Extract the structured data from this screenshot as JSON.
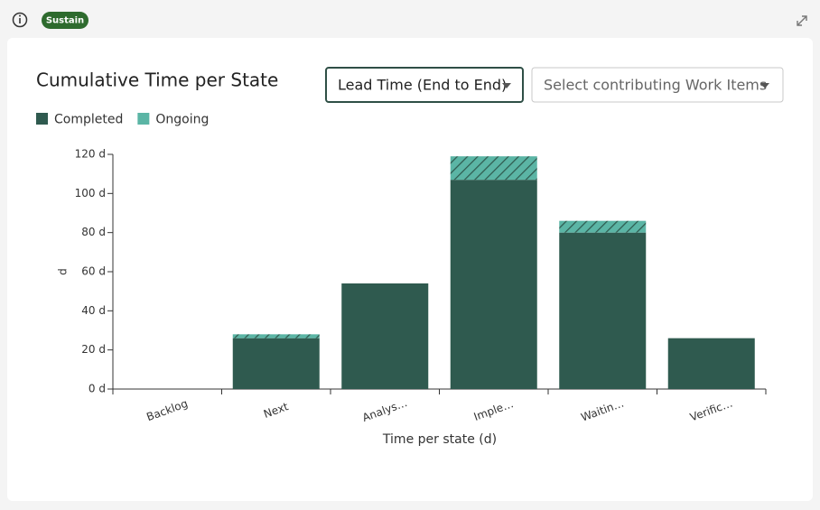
{
  "header": {
    "badge": "Sustain"
  },
  "controls": {
    "metric": "Lead Time (End to End)",
    "work_items_placeholder": "Select contributing Work Items"
  },
  "chart_data": {
    "type": "bar",
    "stacked": true,
    "title": "Cumulative Time per State",
    "categories": [
      "Backlog",
      "Next",
      "Analys…",
      "Imple…",
      "Waitin…",
      "Verific…"
    ],
    "series": [
      {
        "name": "Completed",
        "color": "#2f5a4f",
        "pattern": "solid",
        "values": [
          0,
          26,
          54,
          107,
          80,
          26
        ]
      },
      {
        "name": "Ongoing",
        "color": "#5bb5a5",
        "pattern": "hatch",
        "values": [
          0,
          2,
          0,
          12,
          6,
          0
        ]
      }
    ],
    "ylim": [
      0,
      120
    ],
    "yticks": [
      {
        "value": 0,
        "label": "0 d"
      },
      {
        "value": 20,
        "label": "20 d"
      },
      {
        "value": 40,
        "label": "40 d"
      },
      {
        "value": 60,
        "label": "60 d"
      },
      {
        "value": 80,
        "label": "80 d"
      },
      {
        "value": 100,
        "label": "100 d"
      },
      {
        "value": 120,
        "label": "120 d"
      }
    ],
    "ylabel": "d",
    "xlabel": "Time per state (d)"
  }
}
